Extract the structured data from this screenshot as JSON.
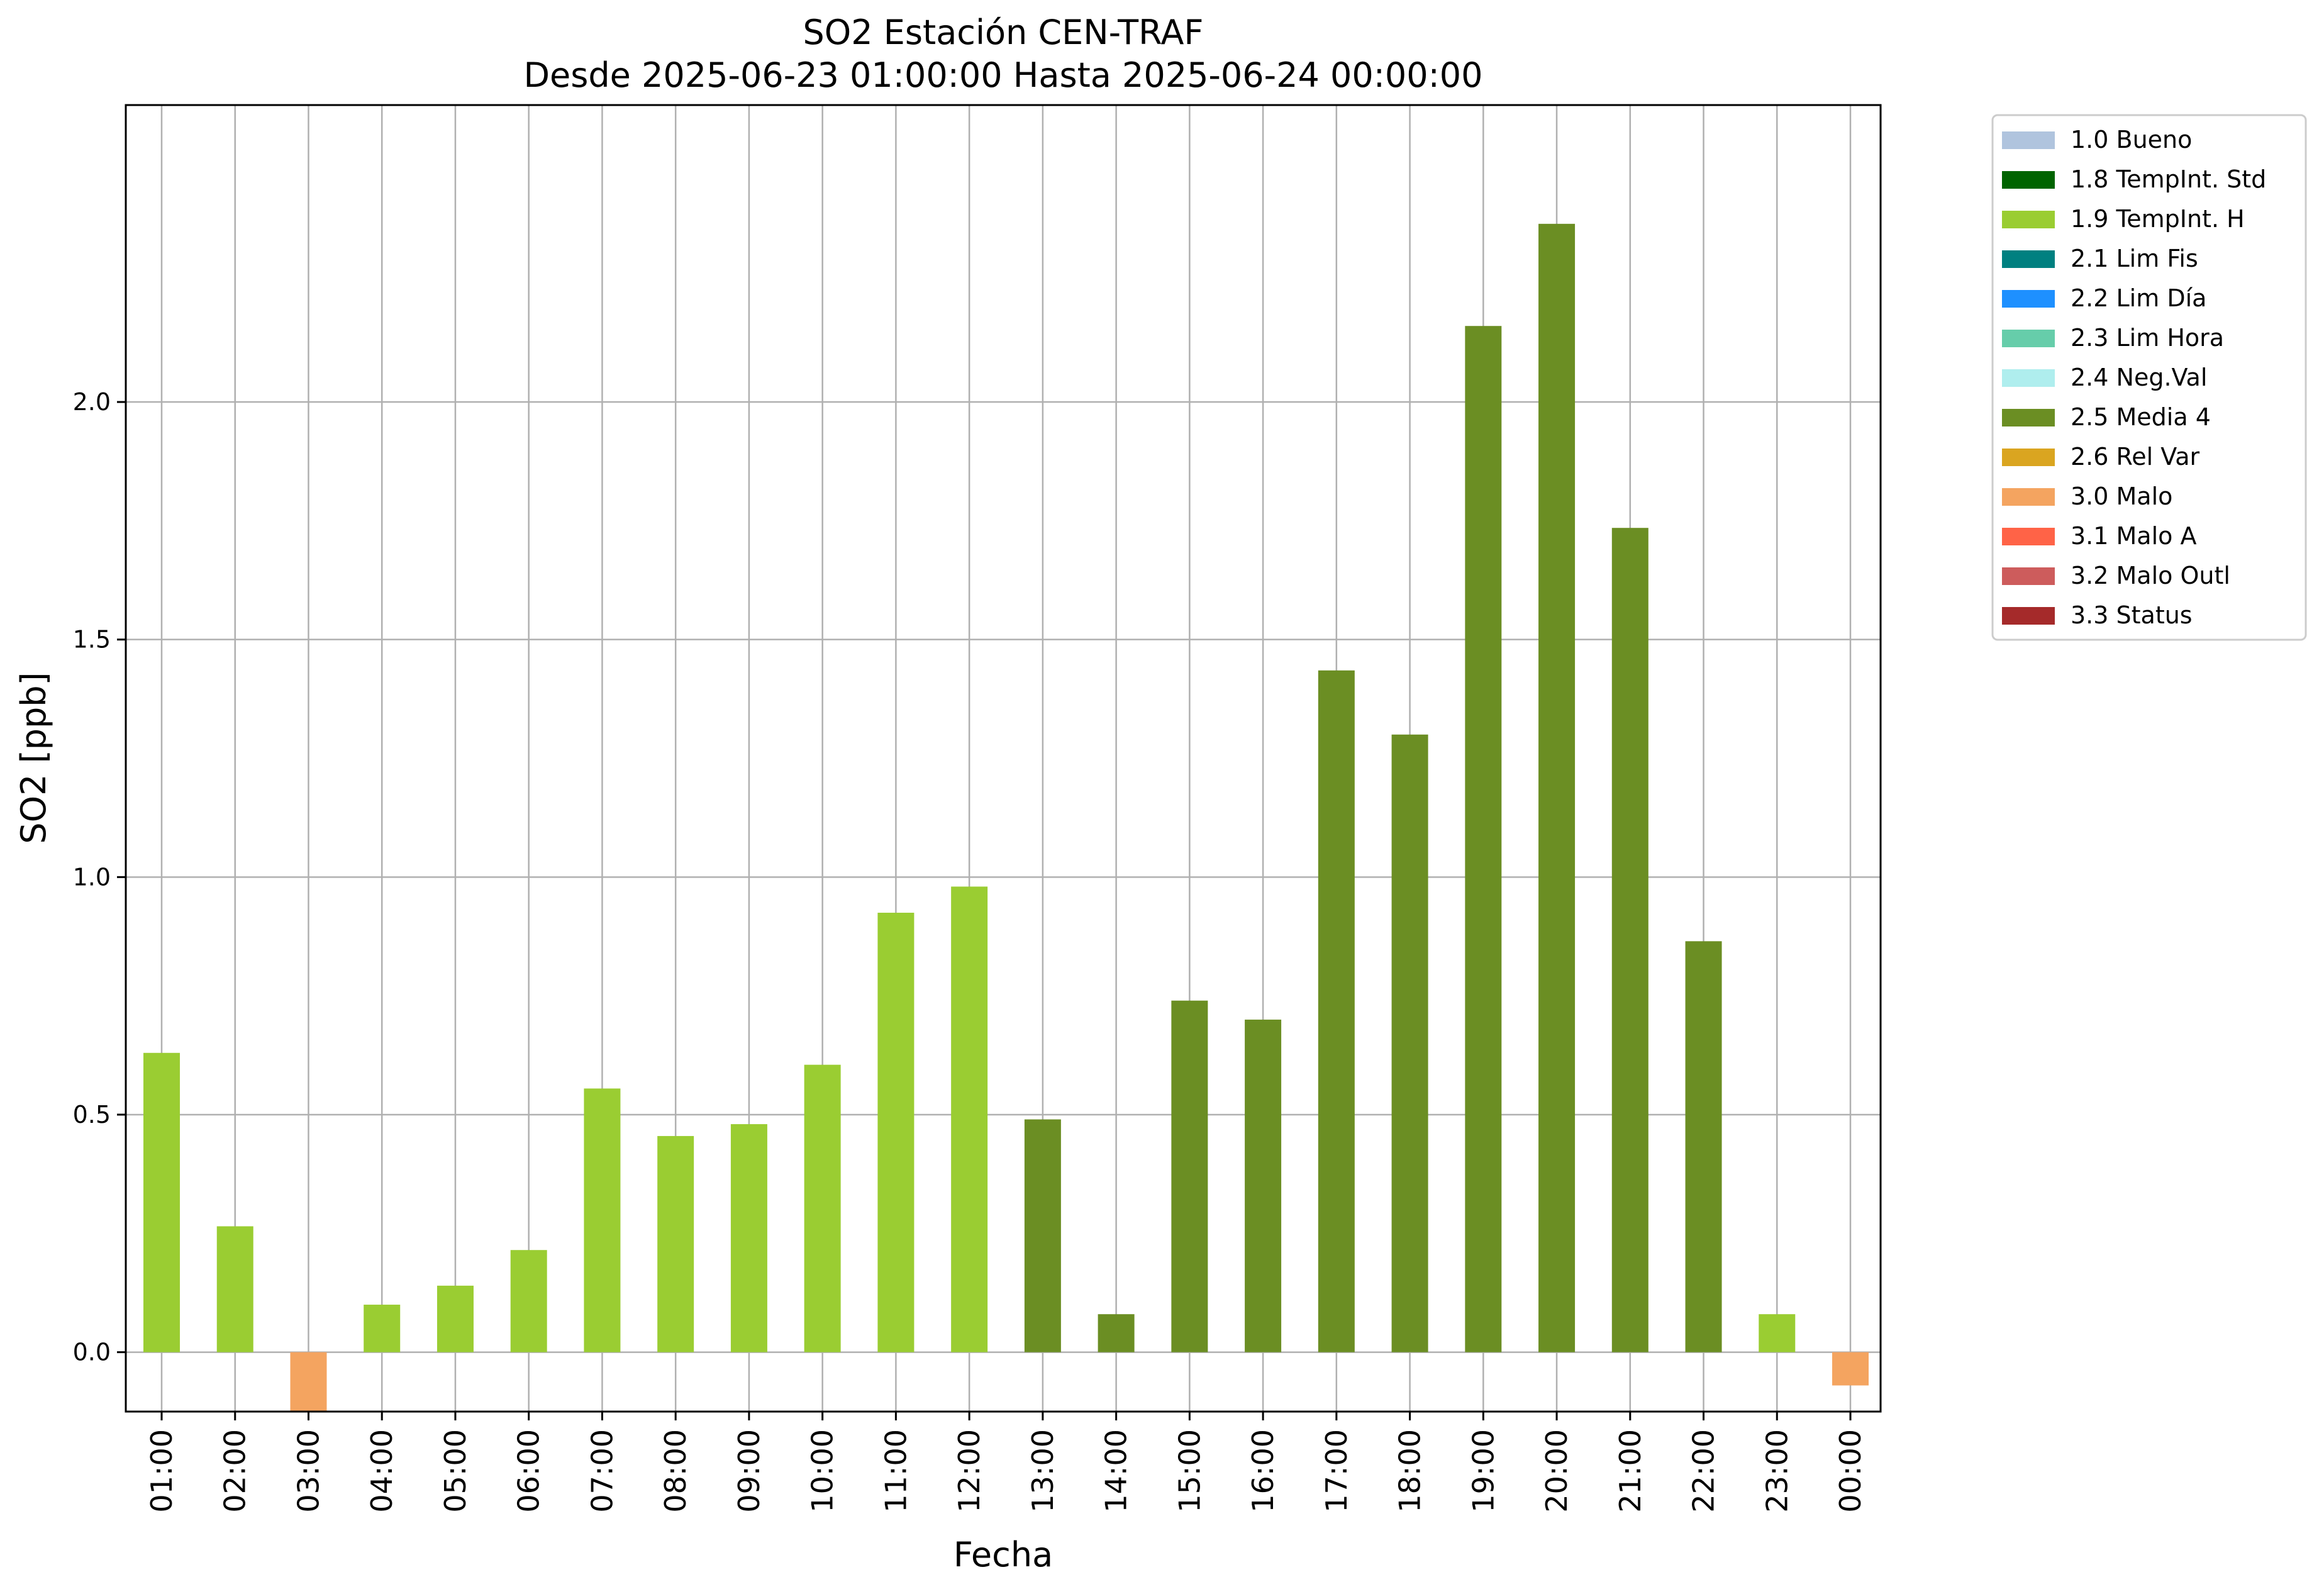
{
  "chart_data": {
    "type": "bar",
    "title": "SO2 Estación CEN-TRAF",
    "subtitle": "Desde 2025-06-23 01:00:00 Hasta 2025-06-24 00:00:00",
    "xlabel": "Fecha",
    "ylabel": "SO2 [ppb]",
    "ylim": [
      -0.125,
      2.625
    ],
    "yticks": [
      "0.0",
      "0.5",
      "1.0",
      "1.5",
      "2.0"
    ],
    "ytick_values": [
      0,
      0.5,
      1.0,
      1.5,
      2.0
    ],
    "grid": true,
    "legend_position": "outside-top-right",
    "categories": [
      "01:00",
      "02:00",
      "03:00",
      "04:00",
      "05:00",
      "06:00",
      "07:00",
      "08:00",
      "09:00",
      "10:00",
      "11:00",
      "12:00",
      "13:00",
      "14:00",
      "15:00",
      "16:00",
      "17:00",
      "18:00",
      "19:00",
      "20:00",
      "21:00",
      "22:00",
      "23:00",
      "00:00"
    ],
    "values": [
      0.63,
      0.265,
      -0.13,
      0.1,
      0.14,
      0.215,
      0.555,
      0.455,
      0.48,
      0.605,
      0.925,
      0.98,
      0.49,
      0.08,
      0.74,
      0.7,
      1.435,
      1.3,
      2.16,
      2.375,
      1.735,
      0.865,
      0.08,
      -0.07
    ],
    "flags": [
      "1.9",
      "1.9",
      "3.0",
      "1.9",
      "1.9",
      "1.9",
      "1.9",
      "1.9",
      "1.9",
      "1.9",
      "1.9",
      "1.9",
      "2.5",
      "2.5",
      "2.5",
      "2.5",
      "2.5",
      "2.5",
      "2.5",
      "2.5",
      "2.5",
      "2.5",
      "1.9",
      "3.0"
    ],
    "legend": [
      {
        "code": "1.0",
        "label": "1.0 Bueno",
        "color": "#b0c4de"
      },
      {
        "code": "1.8",
        "label": "1.8 TempInt. Std",
        "color": "#006400"
      },
      {
        "code": "1.9",
        "label": "1.9 TempInt. H",
        "color": "#9acd32"
      },
      {
        "code": "2.1",
        "label": "2.1 Lim Fis",
        "color": "#008080"
      },
      {
        "code": "2.2",
        "label": "2.2 Lim Día",
        "color": "#1e90ff"
      },
      {
        "code": "2.3",
        "label": "2.3 Lim Hora",
        "color": "#66cdaa"
      },
      {
        "code": "2.4",
        "label": "2.4 Neg.Val",
        "color": "#afeeee"
      },
      {
        "code": "2.5",
        "label": "2.5 Media 4",
        "color": "#6b8e23"
      },
      {
        "code": "2.6",
        "label": "2.6 Rel Var",
        "color": "#daa520"
      },
      {
        "code": "3.0",
        "label": "3.0 Malo",
        "color": "#f4a460"
      },
      {
        "code": "3.1",
        "label": "3.1 Malo A",
        "color": "#ff6347"
      },
      {
        "code": "3.2",
        "label": "3.2 Malo Outl",
        "color": "#cd5c5c"
      },
      {
        "code": "3.3",
        "label": "3.3 Status",
        "color": "#a52a2a"
      }
    ]
  }
}
